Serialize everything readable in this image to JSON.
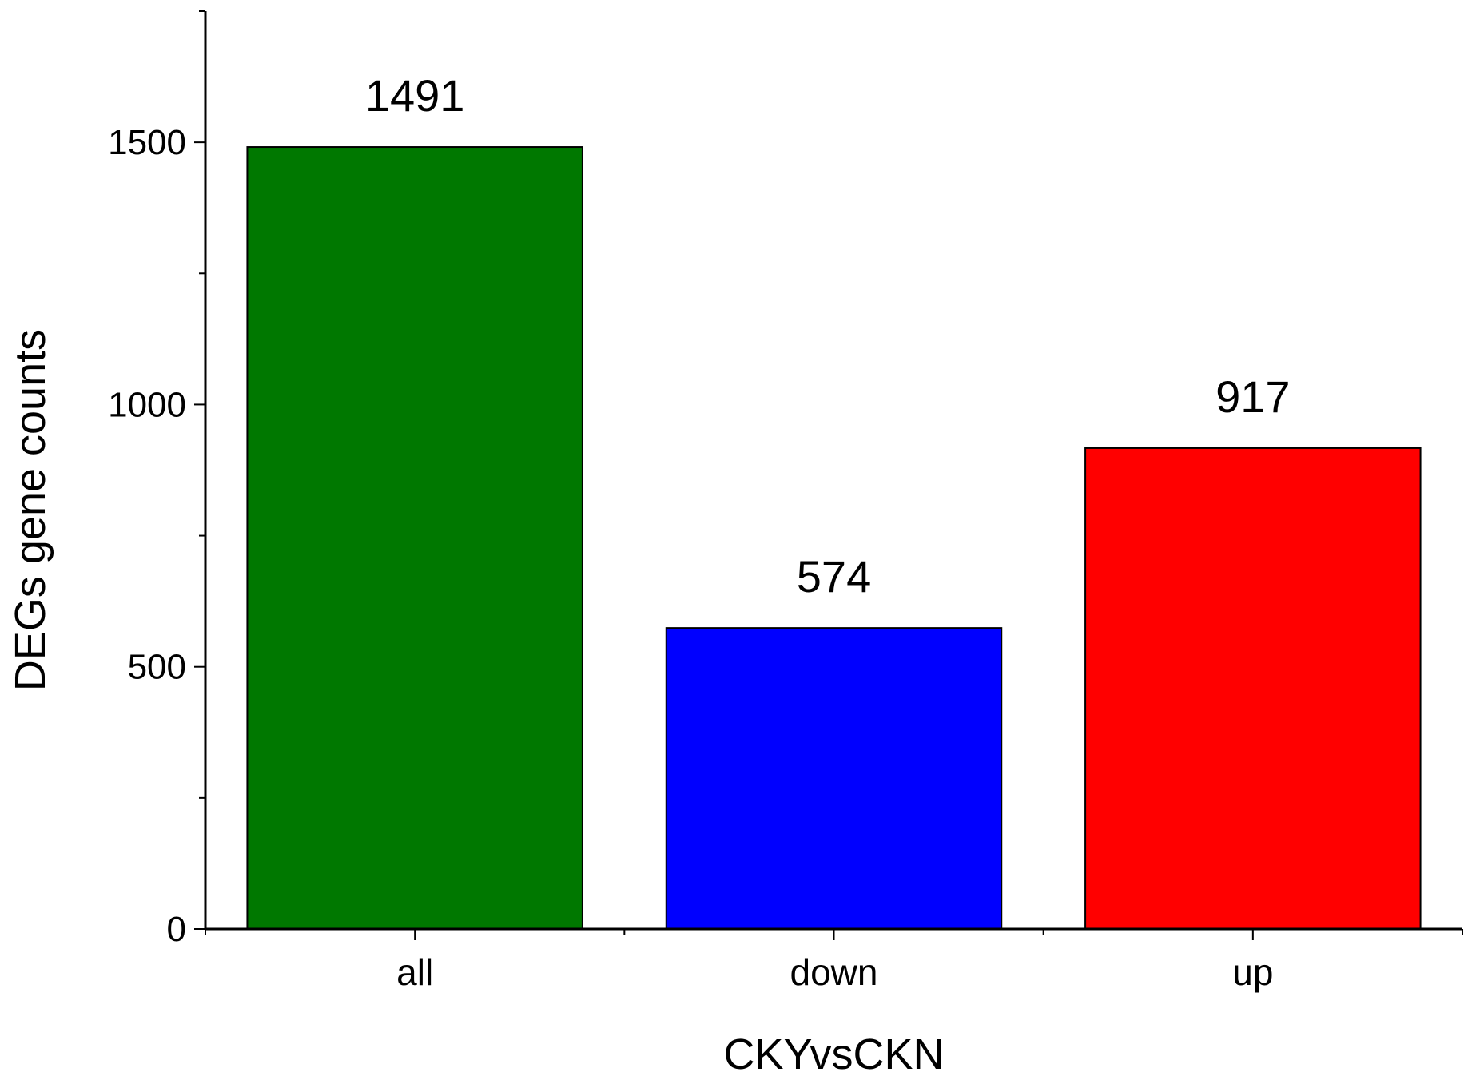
{
  "chart_data": {
    "type": "bar",
    "categories": [
      "all",
      "down",
      "up"
    ],
    "values": [
      1491,
      574,
      917
    ],
    "data_labels": [
      "1491",
      "574",
      "917"
    ],
    "colors": [
      "#007800",
      "#0000ff",
      "#ff0000"
    ],
    "xlabel": "CKYvsCKN",
    "ylabel": "DEGs gene counts",
    "ylim": [
      0,
      1750
    ],
    "y_ticks": [
      0,
      500,
      1000,
      1500
    ],
    "y_minor_step": 250,
    "grid": false,
    "legend": "none"
  }
}
